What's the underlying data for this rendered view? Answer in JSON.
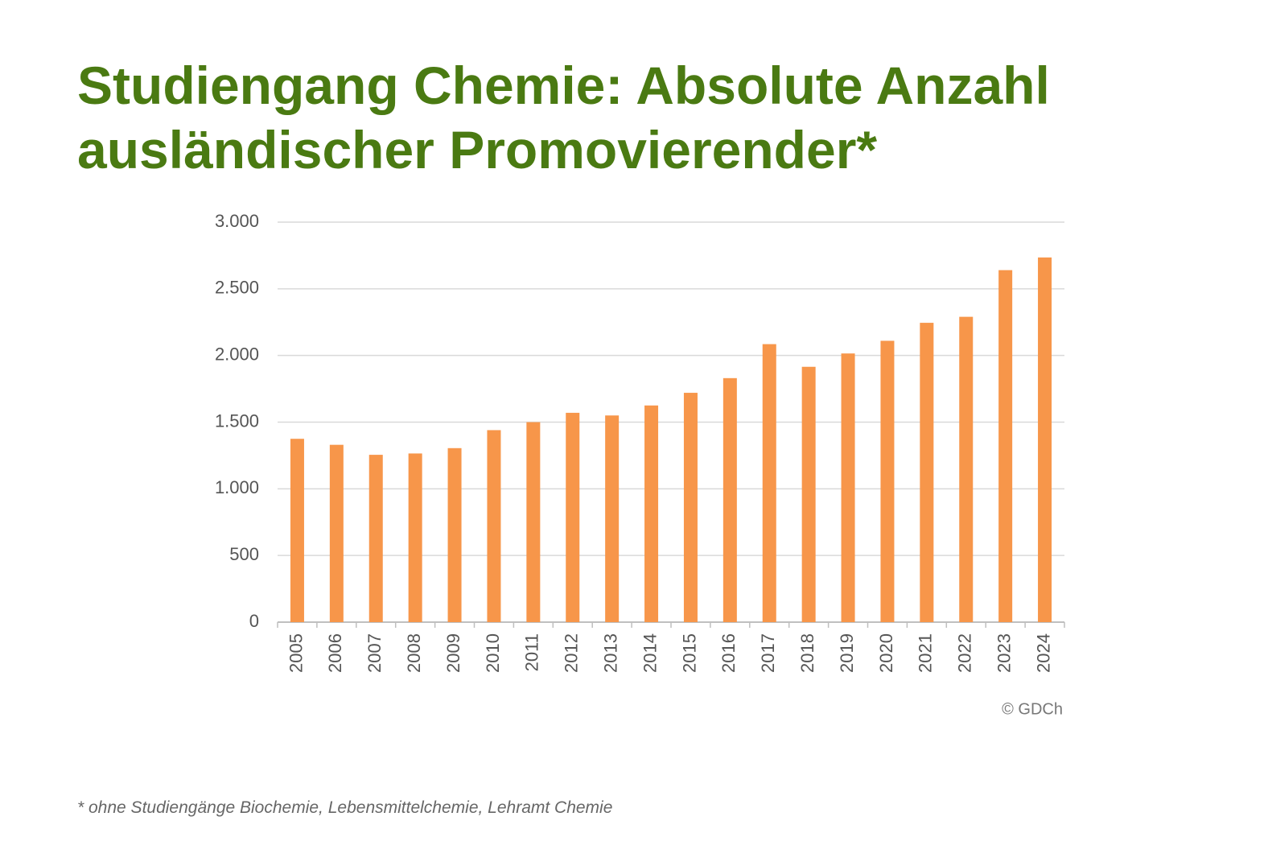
{
  "chart_data": {
    "type": "bar",
    "title": "Studiengang Chemie: Absolute Anzahl ausländischer Promovierender*",
    "categories": [
      "2005",
      "2006",
      "2007",
      "2008",
      "2009",
      "2010",
      "2011",
      "2012",
      "2013",
      "2014",
      "2015",
      "2016",
      "2017",
      "2018",
      "2019",
      "2020",
      "2021",
      "2022",
      "2023",
      "2024"
    ],
    "values": [
      1375,
      1330,
      1255,
      1265,
      1305,
      1440,
      1500,
      1570,
      1550,
      1625,
      1720,
      1830,
      2085,
      1915,
      2015,
      2110,
      2245,
      2290,
      2640,
      2735
    ],
    "color": "#f7964a",
    "ylim": [
      0,
      3000
    ],
    "yticks": [
      0,
      500,
      {
        "value": 1000,
        "label": "1.000"
      },
      {
        "value": 1500,
        "label": "1.500"
      },
      {
        "value": 2000,
        "label": "2.000"
      },
      {
        "value": 2500,
        "label": "2.500"
      },
      {
        "value": 3000,
        "label": "3.000"
      }
    ],
    "grid": true,
    "source": "© GDCh",
    "footnote": "* ohne Studiengänge Biochemie, Lebensmittelchemie, Lehramt Chemie"
  }
}
